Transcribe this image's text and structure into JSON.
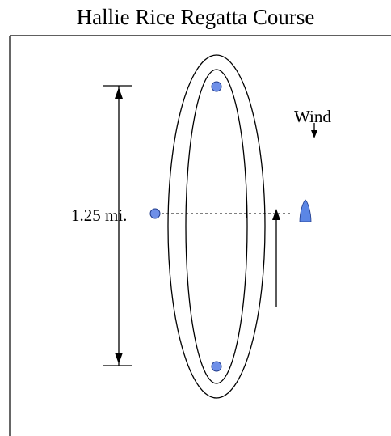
{
  "title": "Hallie Rice Regatta Course",
  "wind": {
    "label": "Wind"
  },
  "course": {
    "distance_label": "1.25 mi.",
    "mark_color": "#6e8fe8",
    "mark_stroke": "#1f3a8a",
    "committee_boat_color": "#5b86e5"
  }
}
